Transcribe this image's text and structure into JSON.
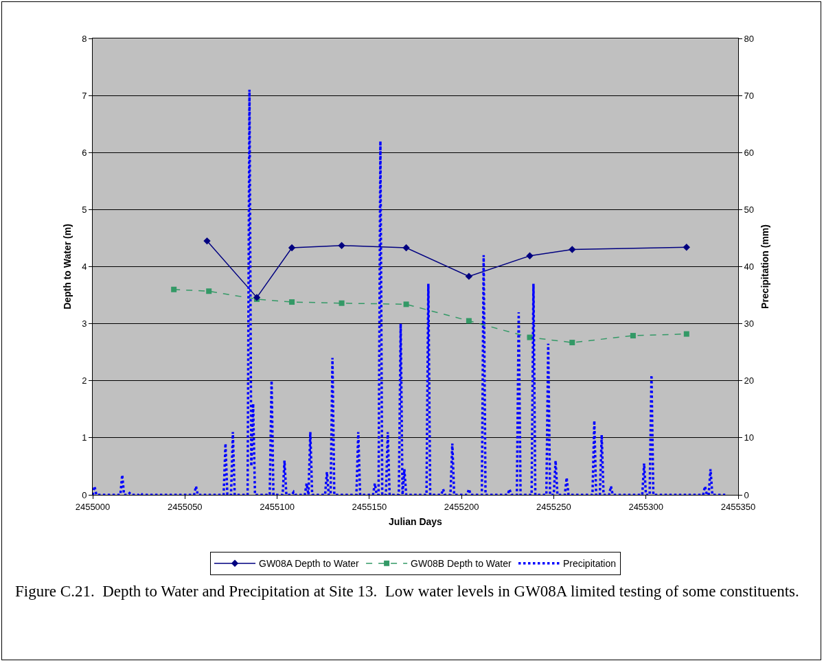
{
  "chart_data": {
    "type": "line",
    "xlabel": "Julian Days",
    "ylabel": "Depth to Water (m)",
    "y2label": "Precipitation (mm)",
    "xlim": [
      2455000,
      2455350
    ],
    "xticks": [
      2455000,
      2455050,
      2455100,
      2455150,
      2455200,
      2455250,
      2455300,
      2455350
    ],
    "ylim": [
      0,
      8
    ],
    "yticks": [
      0,
      1,
      2,
      3,
      4,
      5,
      6,
      7,
      8
    ],
    "y2lim": [
      0,
      80
    ],
    "y2ticks": [
      0,
      10,
      20,
      30,
      40,
      50,
      60,
      70,
      80
    ],
    "grid": "y",
    "legend": "bottom",
    "series": [
      {
        "name": "GW08A Depth to Water",
        "color": "#000080",
        "marker": "diamond",
        "line_style": "solid",
        "x": [
          2455062,
          2455089,
          2455108,
          2455135,
          2455170,
          2455204,
          2455237,
          2455260,
          2455322
        ],
        "values": [
          4.45,
          3.46,
          4.33,
          4.37,
          4.33,
          3.83,
          4.19,
          4.3,
          4.34
        ]
      },
      {
        "name": "GW08B Depth to Water",
        "color": "#339966",
        "marker": "square",
        "line_style": "dashed",
        "x": [
          2455044,
          2455063,
          2455089,
          2455108,
          2455135,
          2455170,
          2455204,
          2455237,
          2455260,
          2455293,
          2455322
        ],
        "values": [
          3.6,
          3.57,
          3.43,
          3.38,
          3.36,
          3.34,
          3.05,
          2.76,
          2.67,
          2.79,
          2.82
        ]
      },
      {
        "name": "Precipitation",
        "color": "#0000ff",
        "marker": "none",
        "line_style": "dotted",
        "axis": "y2",
        "x": [
          2455000,
          2455001,
          2455002,
          2455015,
          2455016,
          2455017,
          2455019,
          2455020,
          2455021,
          2455025,
          2455026,
          2455027,
          2455055,
          2455056,
          2455057,
          2455071,
          2455072,
          2455073,
          2455075,
          2455076,
          2455077,
          2455084,
          2455085,
          2455086,
          2455087,
          2455088,
          2455096,
          2455097,
          2455098,
          2455103,
          2455104,
          2455105,
          2455108,
          2455109,
          2455110,
          2455115,
          2455116,
          2455117,
          2455118,
          2455119,
          2455126,
          2455127,
          2455128,
          2455129,
          2455130,
          2455131,
          2455143,
          2455144,
          2455145,
          2455152,
          2455153,
          2455154,
          2455155,
          2455156,
          2455157,
          2455159,
          2455160,
          2455161,
          2455166,
          2455167,
          2455168,
          2455169,
          2455170,
          2455181,
          2455182,
          2455183,
          2455189,
          2455190,
          2455191,
          2455194,
          2455195,
          2455196,
          2455203,
          2455204,
          2455205,
          2455211,
          2455212,
          2455213,
          2455225,
          2455226,
          2455227,
          2455230,
          2455231,
          2455232,
          2455238,
          2455239,
          2455240,
          2455246,
          2455247,
          2455248,
          2455250,
          2455251,
          2455252,
          2455256,
          2455257,
          2455258,
          2455271,
          2455272,
          2455273,
          2455275,
          2455276,
          2455277,
          2455280,
          2455281,
          2455282,
          2455298,
          2455299,
          2455300,
          2455302,
          2455303,
          2455304,
          2455331,
          2455332,
          2455333,
          2455334,
          2455335,
          2455336,
          2455343
        ],
        "values": [
          0,
          1.5,
          0,
          0,
          3.5,
          0,
          0,
          0.3,
          0,
          0,
          0.3,
          0,
          0,
          1.5,
          0,
          0,
          9,
          0,
          0,
          11,
          0,
          0,
          71,
          5,
          16,
          0,
          0,
          20,
          0,
          0,
          6,
          0,
          0,
          0.5,
          0,
          0,
          2,
          0,
          11,
          0,
          0,
          4,
          0,
          0,
          24,
          0,
          0,
          11,
          0,
          0,
          2,
          0,
          0,
          62,
          0,
          0,
          11,
          0,
          0,
          30,
          0,
          4.5,
          0,
          0,
          37,
          0,
          0,
          1,
          0,
          0,
          9,
          0,
          0,
          1,
          0,
          0,
          42,
          0,
          0,
          1,
          0,
          0,
          32,
          0,
          0,
          37,
          0,
          0,
          26.5,
          0,
          0,
          6,
          0,
          0,
          3,
          0,
          0,
          13,
          0,
          0,
          10.5,
          0,
          0,
          1.5,
          0,
          0,
          5.5,
          0,
          0,
          21,
          0,
          0,
          1.5,
          0,
          0,
          4.5,
          0,
          0
        ]
      }
    ],
    "annotations": [
      "Figure C.21.  Depth to Water and Precipitation at Site 13.  Low water levels in GW08A limited testing of some constituents."
    ]
  }
}
